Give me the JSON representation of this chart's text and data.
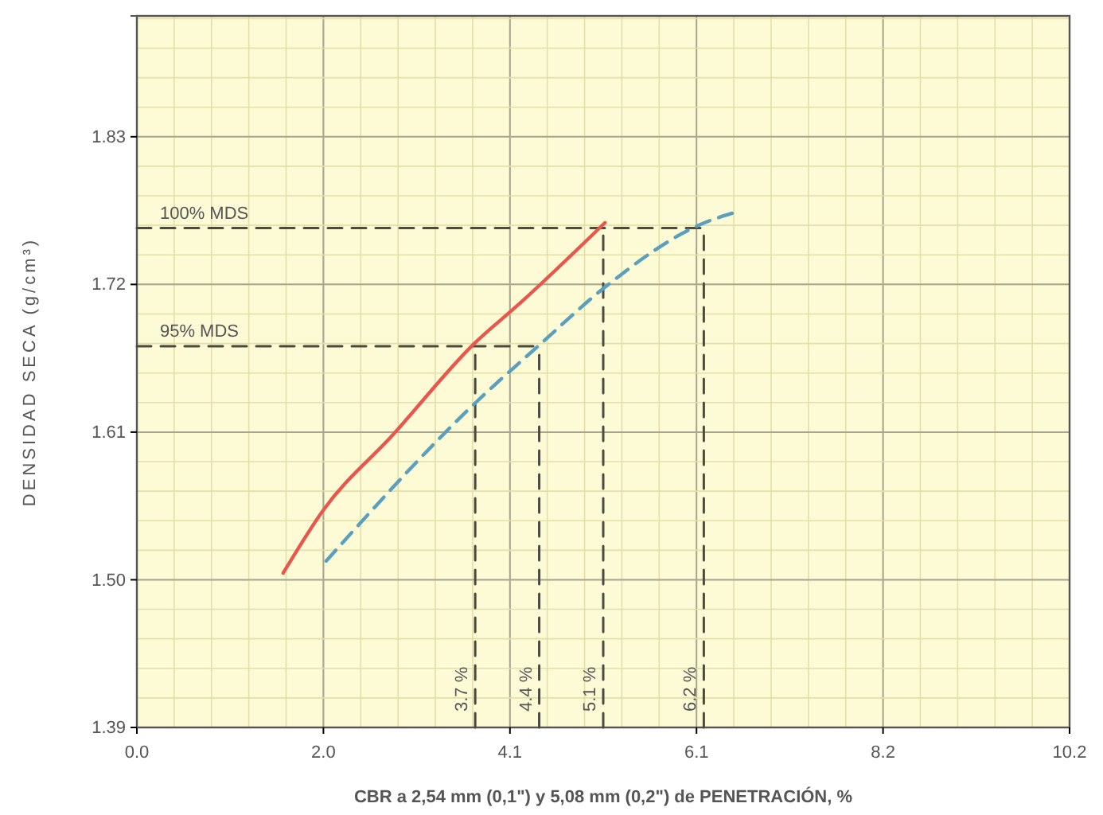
{
  "chart_data": {
    "type": "line",
    "xlabel": "CBR a 2,54 mm (0,1\") y 5,08 mm (0,2\") de PENETRACIÓN, %",
    "ylabel": "DENSIDAD SECA (g/cm³)",
    "xlim": [
      0,
      10.2
    ],
    "ylim": [
      1.39,
      1.92
    ],
    "xticks": [
      {
        "value": 0,
        "label": "0.0"
      },
      {
        "value": 2.04,
        "label": "2.0"
      },
      {
        "value": 4.08,
        "label": "4.1"
      },
      {
        "value": 6.12,
        "label": "6.1"
      },
      {
        "value": 8.16,
        "label": "8.2"
      },
      {
        "value": 10.2,
        "label": "10.2"
      }
    ],
    "yticks": [
      1.39,
      {
        "value": 1.5,
        "label": "1.50"
      },
      1.61,
      1.72,
      1.83
    ],
    "grid": true,
    "series": [
      {
        "color": "#e8574c",
        "line_style": "solid",
        "x": [
          1.6,
          2.04,
          2.8,
          3.69,
          4.19,
          5.12
        ],
        "values": [
          1.505,
          1.552,
          1.608,
          1.676,
          1.706,
          1.766
        ]
      },
      {
        "color": "#5b9fbe",
        "line_style": "dashed",
        "x": [
          2.07,
          3.69,
          4.42,
          5.12,
          6.21,
          6.51
        ],
        "values": [
          1.514,
          1.631,
          1.676,
          1.718,
          1.766,
          1.773
        ]
      },
      {
        "color": "#4a4a40",
        "line_style": "dashed",
        "x": [
          0,
          6.2
        ],
        "values": [
          1.762,
          1.762
        ]
      },
      {
        "color": "#4a4a40",
        "line_style": "dashed",
        "x": [
          0,
          4.4
        ],
        "values": [
          1.674,
          1.674
        ]
      },
      {
        "color": "#4a4a40",
        "line_style": "dashed",
        "x": [
          3.7,
          3.7
        ],
        "values": [
          1.39,
          1.674
        ]
      },
      {
        "color": "#4a4a40",
        "line_style": "dashed",
        "x": [
          4.4,
          4.4
        ],
        "values": [
          1.39,
          1.674
        ]
      },
      {
        "color": "#4a4a40",
        "line_style": "dashed",
        "x": [
          5.1,
          5.1
        ],
        "values": [
          1.39,
          1.762
        ]
      },
      {
        "color": "#4a4a40",
        "line_style": "dashed",
        "x": [
          6.2,
          6.2
        ],
        "values": [
          1.39,
          1.762
        ]
      }
    ],
    "annotations": [
      {
        "text": "100% MDS",
        "x": 0.6,
        "y": 1.762
      },
      {
        "text": "95% MDS",
        "x": 0.6,
        "y": 1.674
      },
      {
        "text": "3.7 %",
        "x": 3.7,
        "y": 1.39
      },
      {
        "text": "4.4 %",
        "x": 4.4,
        "y": 1.39
      },
      {
        "text": "5.1 %",
        "x": 5.1,
        "y": 1.39
      },
      {
        "text": "6.2 %",
        "x": 6.2,
        "y": 1.39
      }
    ]
  }
}
